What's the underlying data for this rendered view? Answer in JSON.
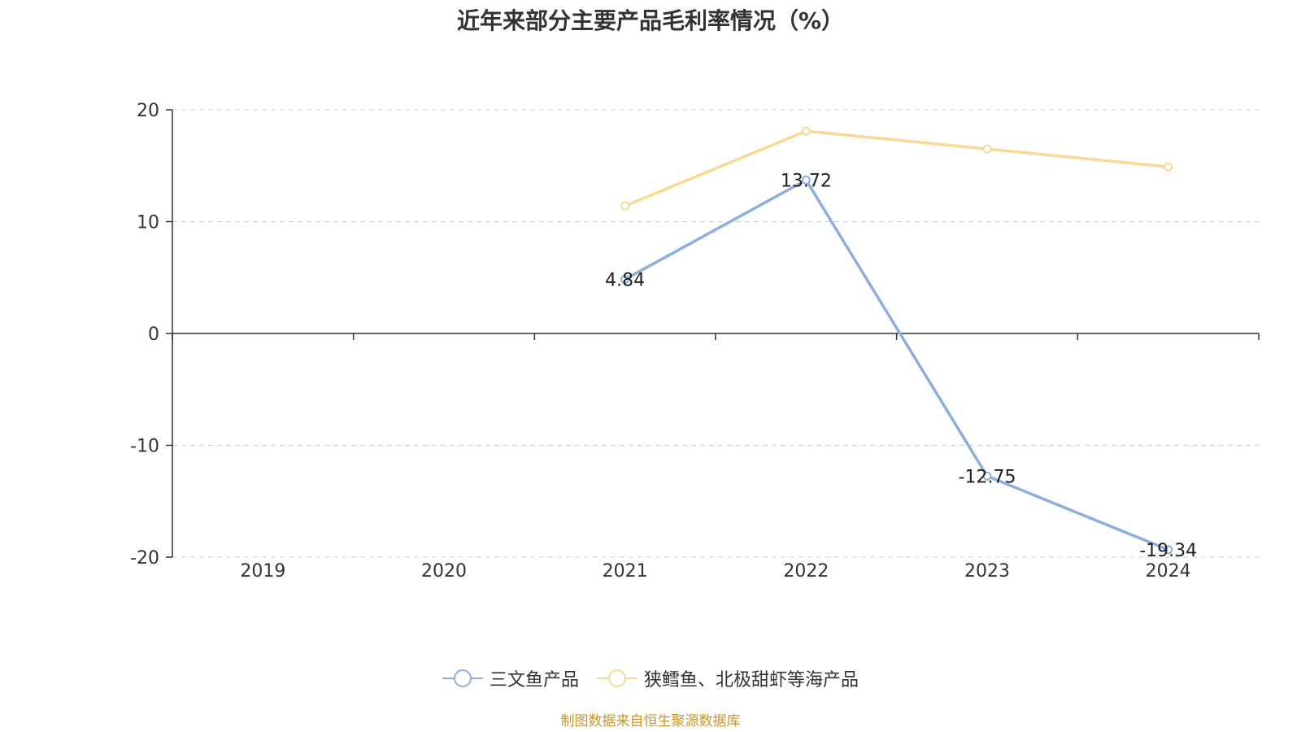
{
  "chart_data": {
    "type": "line",
    "title": "近年来部分主要产品毛利率情况（%）",
    "categories": [
      "2019",
      "2020",
      "2021",
      "2022",
      "2023",
      "2024"
    ],
    "ylim": [
      -20,
      20
    ],
    "yticks": [
      -20,
      -10,
      0,
      10,
      20
    ],
    "ytick_labels": [
      "-20",
      "-10",
      "0",
      "10",
      "20"
    ],
    "grid": true,
    "legend_position": "bottom",
    "series": [
      {
        "name": "三文鱼产品",
        "color": "#8eaedb",
        "values": [
          null,
          null,
          4.84,
          13.72,
          -12.75,
          -19.34
        ],
        "labels": [
          "",
          "",
          "4.84",
          "13.72",
          "-12.75",
          "-19.34"
        ]
      },
      {
        "name": "狭鳕鱼、北极甜虾等海产品",
        "color": "#fad896",
        "values": [
          null,
          null,
          11.4,
          18.1,
          16.5,
          14.9
        ],
        "labels": [
          "",
          "",
          "",
          "",
          "",
          ""
        ]
      }
    ]
  },
  "source_text": "制图数据来自恒生聚源数据库"
}
